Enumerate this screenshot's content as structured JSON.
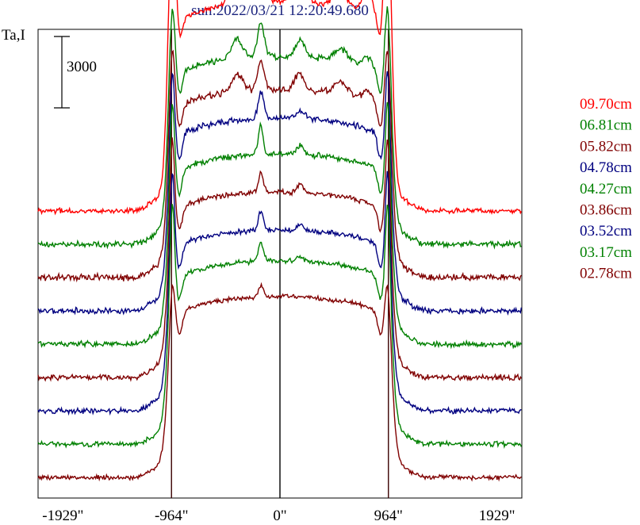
{
  "chart_data": {
    "type": "line",
    "title": "sun:2022/03/21 12:20:49.680",
    "ylabel": "Ta,I",
    "xlabel": "",
    "xlim": [
      -2150,
      2150
    ],
    "x_ticks": [
      {
        "value": -1929,
        "label": "-1929\""
      },
      {
        "value": -964,
        "label": "-964\""
      },
      {
        "value": 0,
        "label": "0\""
      },
      {
        "value": 964,
        "label": "964\""
      },
      {
        "value": 1929,
        "label": "1929\""
      }
    ],
    "vertical_lines": [
      -964,
      0,
      964
    ],
    "scale_bar": {
      "value": 3000,
      "label": "3000"
    },
    "trace_spacing": 1400,
    "series": [
      {
        "name": "09.70cm",
        "color": "#ff0000",
        "offset": 8,
        "base": 8800,
        "limb_peak": 5600,
        "peak_width": 30,
        "bumps": [
          [
            -380,
            1500,
            55
          ],
          [
            -170,
            1800,
            40
          ],
          [
            170,
            900,
            55
          ],
          [
            540,
            600,
            60
          ],
          [
            780,
            1000,
            45
          ]
        ],
        "wiggle": 200
      },
      {
        "name": "06.81cm",
        "color": "#008000",
        "offset": 7,
        "base": 7900,
        "limb_peak": 3600,
        "peak_width": 25,
        "bumps": [
          [
            -380,
            800,
            50
          ],
          [
            -170,
            1400,
            30
          ],
          [
            180,
            700,
            40
          ],
          [
            540,
            500,
            60
          ],
          [
            780,
            400,
            45
          ]
        ],
        "wiggle": 240
      },
      {
        "name": "05.82cm",
        "color": "#800000",
        "offset": 6,
        "base": 7900,
        "limb_peak": 3200,
        "peak_width": 25,
        "bumps": [
          [
            -380,
            700,
            50
          ],
          [
            -170,
            1300,
            30
          ],
          [
            170,
            700,
            40
          ],
          [
            540,
            500,
            60
          ],
          [
            780,
            400,
            45
          ]
        ],
        "wiggle": 260
      },
      {
        "name": "04.78cm",
        "color": "#000080",
        "offset": 5,
        "base": 8100,
        "limb_peak": 3600,
        "peak_width": 20,
        "bumps": [
          [
            -170,
            1100,
            25
          ],
          [
            180,
            300,
            40
          ]
        ],
        "wiggle": 240
      },
      {
        "name": "04.27cm",
        "color": "#008000",
        "offset": 4,
        "base": 8000,
        "limb_peak": 3800,
        "peak_width": 20,
        "bumps": [
          [
            -170,
            1200,
            22
          ],
          [
            180,
            400,
            30
          ]
        ],
        "wiggle": 220
      },
      {
        "name": "03.86cm",
        "color": "#800000",
        "offset": 3,
        "base": 7800,
        "limb_peak": 3800,
        "peak_width": 20,
        "bumps": [
          [
            -170,
            800,
            22
          ],
          [
            180,
            300,
            30
          ]
        ],
        "wiggle": 220
      },
      {
        "name": "03.52cm",
        "color": "#000080",
        "offset": 2,
        "base": 7600,
        "limb_peak": 4000,
        "peak_width": 20,
        "bumps": [
          [
            -170,
            800,
            22
          ],
          [
            180,
            200,
            30
          ]
        ],
        "wiggle": 200
      },
      {
        "name": "03.17cm",
        "color": "#008000",
        "offset": 1,
        "base": 7700,
        "limb_peak": 4000,
        "peak_width": 20,
        "bumps": [
          [
            -170,
            800,
            22
          ],
          [
            180,
            200,
            30
          ]
        ],
        "wiggle": 200
      },
      {
        "name": "02.78cm",
        "color": "#800000",
        "offset": 0,
        "base": 7600,
        "limb_peak": 2000,
        "peak_width": 22,
        "bumps": [
          [
            -170,
            500,
            22
          ]
        ],
        "wiggle": 180
      }
    ]
  }
}
